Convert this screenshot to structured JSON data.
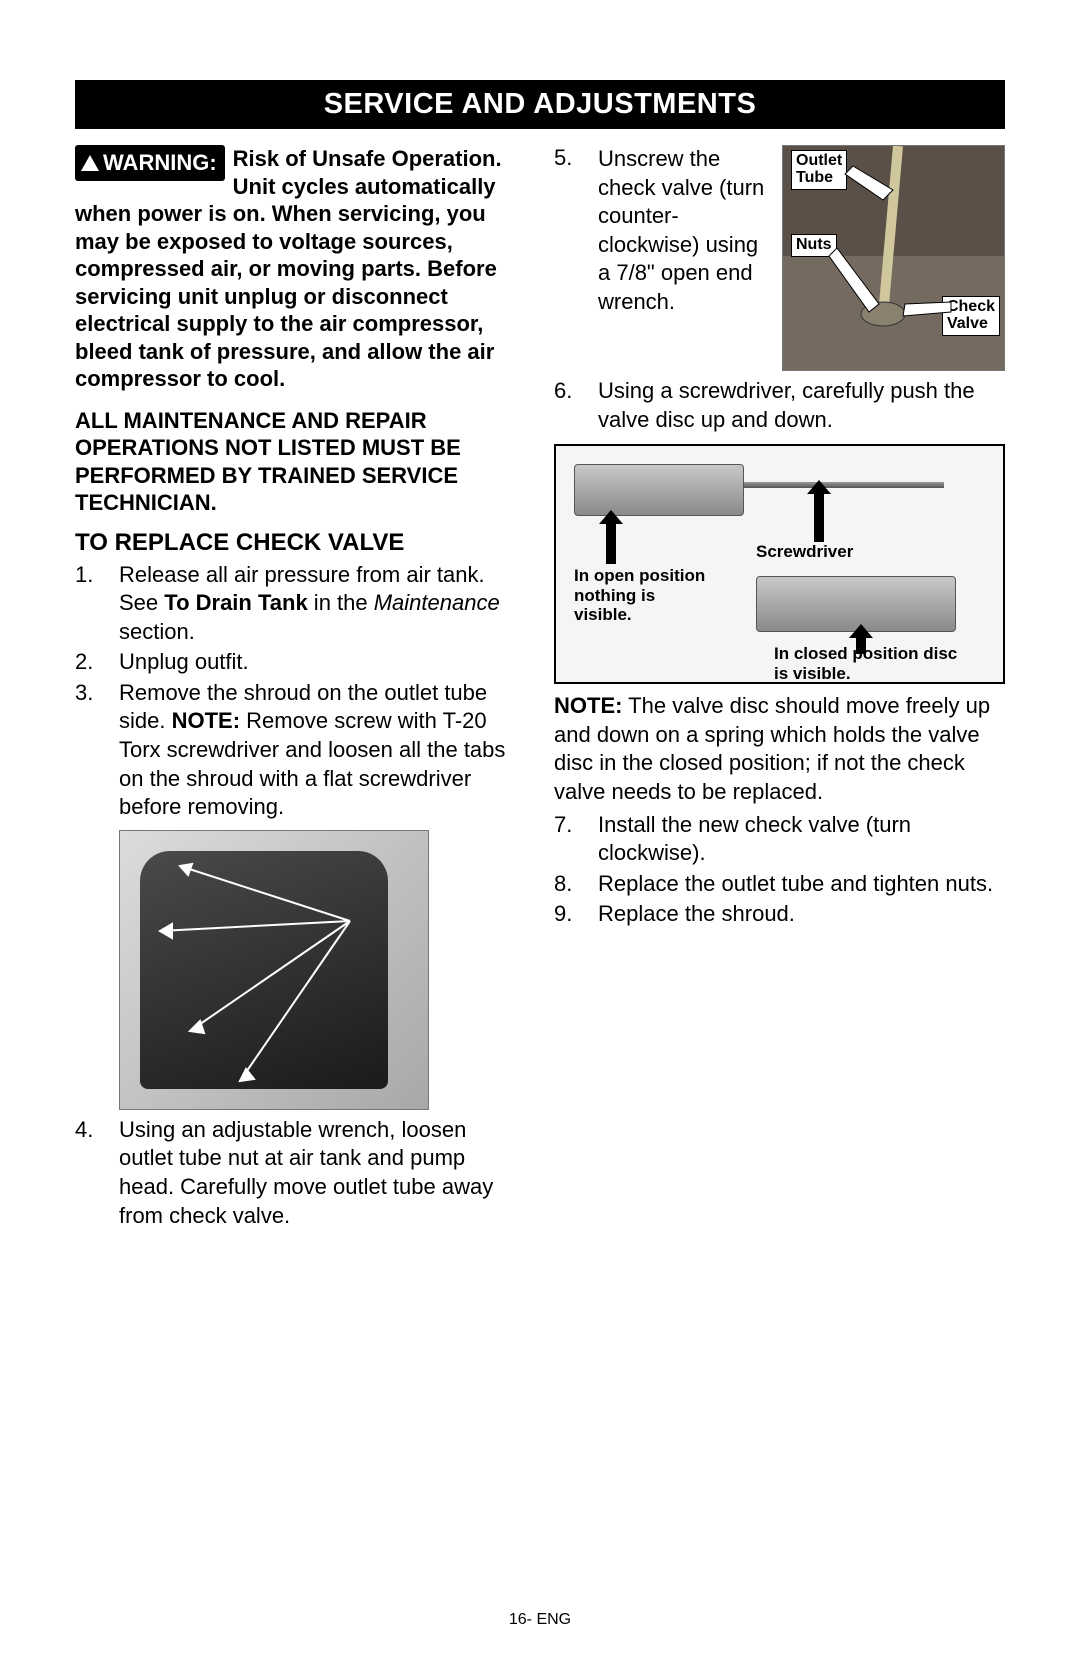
{
  "title": "SERVICE AND ADJUSTMENTS",
  "warning_label": "WARNING:",
  "warning_lead": "Risk of Unsafe Operation. Unit cycles automatically when power is on. When servicing, you may be exposed to voltage sources, compressed air, or moving parts. Before servicing unit unplug or disconnect electrical supply to the air compressor, bleed tank of pressure, and allow the air compressor to cool.",
  "repair_note": "ALL MAINTENANCE AND REPAIR OPERATIONS NOT LISTED MUST BE PERFORMED BY TRAINED SERVICE TECHNICIAN.",
  "subhead": "TO REPLACE CHECK VALVE",
  "steps_left": [
    {
      "n": "1.",
      "pre": "Release all air pressure from air tank. See ",
      "bold": "To Drain Tank",
      "mid": " in the ",
      "ital": "Maintenance",
      "post": " section."
    },
    {
      "n": "2.",
      "text": "Unplug outfit."
    },
    {
      "n": "3.",
      "pre": "Remove the shroud on the outlet tube side. ",
      "bold": "NOTE:",
      "post": " Remove screw with T-20 Torx screwdriver and loosen all the tabs on the shroud with a flat screwdriver before removing."
    },
    {
      "n": "4.",
      "text": "Using an adjustable wrench, loosen outlet tube nut at air tank and pump head. Carefully move outlet tube away from check valve."
    }
  ],
  "steps_right_5": {
    "n": "5.",
    "text": "Unscrew the check valve (turn counter-clockwise) using a 7/8\" open end wrench."
  },
  "steps_right_6": {
    "n": "6.",
    "text": "Using a screwdriver, carefully push the valve disc up and down."
  },
  "steps_right_rest": [
    {
      "n": "7.",
      "text": "Install the new check valve (turn clockwise)."
    },
    {
      "n": "8.",
      "text": "Replace the outlet tube and tighten nuts."
    },
    {
      "n": "9.",
      "text": "Replace the shroud."
    }
  ],
  "fig2_labels": {
    "outlet_tube": "Outlet\nTube",
    "nuts": "Nuts",
    "check_valve": "Check\nValve"
  },
  "fig3_labels": {
    "screwdriver": "Screwdriver",
    "open_pos": "In open position nothing is visible.",
    "closed_pos": "In closed position disc is visible."
  },
  "note_bold": "NOTE:",
  "note_body": " The valve disc should move freely up and down on a spring which holds the valve disc in the closed position; if not the check valve needs to be replaced.",
  "footer": "16- ENG",
  "colors": {
    "page_bg": "#ffffff",
    "text": "#000000",
    "title_bg": "#000000",
    "title_fg": "#ffffff",
    "badge_bg": "#000000",
    "badge_fg": "#ffffff"
  }
}
